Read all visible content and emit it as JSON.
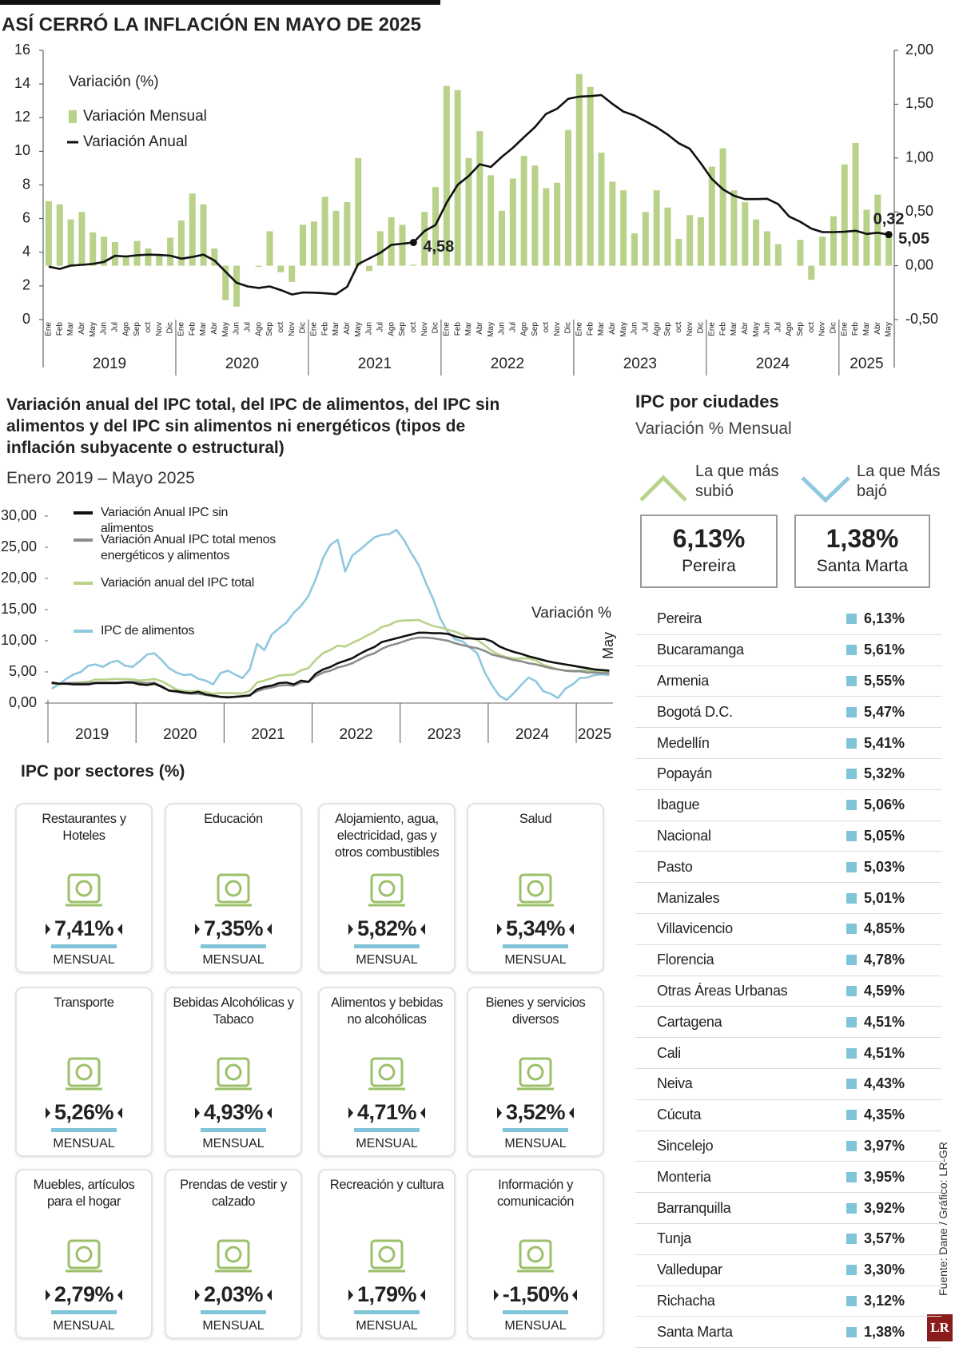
{
  "chart_data": [
    {
      "type": "combo",
      "title": "ASÍ CERRÓ LA INFLACIÓN EN MAYO DE 2025",
      "legend_title": "Variación (%)",
      "categories": [
        "Ene",
        "Feb",
        "Mar",
        "Abr",
        "May",
        "Jun",
        "Jul",
        "Ago",
        "Sep",
        "oct",
        "Nov",
        "Dic",
        "Ene",
        "Feb",
        "Mar",
        "Abr",
        "May",
        "Jun",
        "Jul",
        "Ago",
        "Sep",
        "oct",
        "Nov",
        "Dic",
        "Ene",
        "Feb",
        "Mar",
        "Abr",
        "May",
        "Jun",
        "Jul",
        "Ago",
        "Sep",
        "oct",
        "Nov",
        "Dic",
        "Ene",
        "Feb",
        "Mar",
        "Abr",
        "May",
        "Jun",
        "Jul",
        "Ago",
        "Sep",
        "oct",
        "Nov",
        "Dic",
        "Ene",
        "Feb",
        "Mar",
        "Abr",
        "May",
        "Jun",
        "Jul",
        "Ago",
        "Sep",
        "oct",
        "Nov",
        "Dic",
        "Ene",
        "Feb",
        "Mar",
        "Abr",
        "May",
        "Jun",
        "Jul",
        "Ago",
        "Sep",
        "oct",
        "Nov",
        "Dic",
        "Ene",
        "Feb",
        "Mar",
        "Abr",
        "May"
      ],
      "years": [
        "2019",
        "2020",
        "2021",
        "2022",
        "2023",
        "2024",
        "2025"
      ],
      "series": [
        {
          "name": "Variación Mensual",
          "type": "bar",
          "color": "#b8d28a",
          "axis": "y2",
          "values": [
            0.6,
            0.57,
            0.43,
            0.5,
            0.31,
            0.27,
            0.22,
            0.09,
            0.23,
            0.16,
            0.1,
            0.26,
            0.42,
            0.67,
            0.57,
            0.16,
            -0.32,
            -0.38,
            0.0,
            -0.01,
            0.32,
            -0.06,
            -0.15,
            0.38,
            0.41,
            0.64,
            0.51,
            0.59,
            1.0,
            -0.05,
            0.32,
            0.45,
            0.38,
            0.01,
            0.5,
            0.73,
            1.67,
            1.63,
            1.0,
            1.25,
            0.84,
            0.51,
            0.81,
            1.02,
            0.93,
            0.72,
            0.77,
            1.26,
            1.78,
            1.66,
            1.05,
            0.78,
            0.7,
            0.3,
            0.5,
            0.7,
            0.54,
            0.25,
            0.47,
            0.45,
            0.92,
            1.09,
            0.7,
            0.59,
            0.43,
            0.32,
            0.2,
            0.0,
            0.24,
            -0.13,
            0.27,
            0.46,
            0.94,
            1.14,
            0.52,
            0.66,
            0.32
          ],
          "value_labels": [
            null,
            null,
            null,
            null,
            null,
            null,
            null,
            null,
            null,
            null,
            null,
            null,
            null,
            null,
            null,
            null,
            null,
            null,
            null,
            null,
            null,
            null,
            null,
            null,
            null,
            null,
            null,
            null,
            null,
            null,
            null,
            null,
            null,
            null,
            null,
            null,
            null,
            null,
            null,
            null,
            null,
            null,
            null,
            null,
            null,
            null,
            null,
            null,
            null,
            null,
            null,
            null,
            null,
            null,
            null,
            null,
            null,
            null,
            null,
            null,
            null,
            null,
            null,
            null,
            null,
            null,
            null,
            null,
            null,
            null,
            null,
            null,
            null,
            null,
            null,
            null,
            "0,32"
          ]
        },
        {
          "name": "Variación Anual",
          "type": "line",
          "color": "#111111",
          "values": [
            3.15,
            3.01,
            3.21,
            3.25,
            3.31,
            3.43,
            3.79,
            3.75,
            3.82,
            3.86,
            3.84,
            3.8,
            3.62,
            3.72,
            3.86,
            3.51,
            2.85,
            2.19,
            1.97,
            1.88,
            1.97,
            1.75,
            1.49,
            1.61,
            1.6,
            1.56,
            1.51,
            1.95,
            3.3,
            3.63,
            3.97,
            4.44,
            4.51,
            4.58,
            5.26,
            5.62,
            6.94,
            8.01,
            8.53,
            9.23,
            9.07,
            9.67,
            10.21,
            10.84,
            11.44,
            12.22,
            12.53,
            13.12,
            13.25,
            13.28,
            13.34,
            12.82,
            12.36,
            12.13,
            11.78,
            11.43,
            10.99,
            10.48,
            10.15,
            9.28,
            8.35,
            7.74,
            7.36,
            7.16,
            7.16,
            7.18,
            6.86,
            6.12,
            5.81,
            5.41,
            5.2,
            5.2,
            5.22,
            5.28,
            5.09,
            5.16,
            5.05
          ],
          "value_labels": [
            null,
            null,
            null,
            null,
            null,
            null,
            null,
            null,
            null,
            null,
            null,
            null,
            null,
            null,
            null,
            null,
            null,
            null,
            null,
            null,
            null,
            null,
            null,
            null,
            null,
            null,
            null,
            null,
            null,
            null,
            null,
            null,
            null,
            "4,58",
            null,
            null,
            null,
            null,
            null,
            null,
            null,
            null,
            null,
            null,
            null,
            null,
            null,
            null,
            null,
            null,
            null,
            null,
            null,
            null,
            null,
            null,
            null,
            null,
            null,
            null,
            null,
            null,
            null,
            null,
            null,
            null,
            null,
            null,
            null,
            null,
            null,
            null,
            null,
            null,
            null,
            null,
            "5,05"
          ]
        }
      ],
      "ylim": [
        0,
        16
      ],
      "yticks": [
        0,
        2,
        4,
        6,
        8,
        10,
        12,
        14,
        16
      ],
      "y2lim": [
        -0.5,
        2.0
      ],
      "y2ticks": [
        {
          "value": -0.5,
          "label": "-0,50"
        },
        {
          "value": 0,
          "label": "0,00"
        },
        {
          "value": 0.5,
          "label": "0,50"
        },
        {
          "value": 1.0,
          "label": "1,00"
        },
        {
          "value": 1.5,
          "label": "1,50"
        },
        {
          "value": 2.0,
          "label": "2,00"
        }
      ]
    },
    {
      "type": "line",
      "title": "Variación anual del IPC total, del IPC de alimentos, del IPC sin alimentos y del IPC sin alimentos ni energéticos (tipos de inflación subyacente o estructural)",
      "subtitle": "Enero 2019 – Mayo 2025",
      "annotation": "Variación %",
      "categories": [
        null,
        null,
        null,
        null,
        null,
        null,
        null,
        null,
        null,
        null,
        null,
        null,
        null,
        null,
        null,
        null,
        null,
        null,
        null,
        null,
        null,
        null,
        null,
        null,
        null,
        null,
        null,
        null,
        null,
        null,
        null,
        null,
        null,
        null,
        null,
        null,
        null,
        null,
        null,
        null,
        null,
        null,
        null,
        null,
        null,
        null,
        null,
        null,
        null,
        null,
        null,
        null,
        null,
        null,
        null,
        null,
        null,
        null,
        null,
        null,
        null,
        null,
        null,
        null,
        null,
        null,
        null,
        null,
        null,
        null,
        null,
        null,
        null,
        null,
        null,
        null,
        "May"
      ],
      "years": [
        "2019",
        "2020",
        "2021",
        "2022",
        "2023",
        "2024",
        "2025"
      ],
      "series": [
        {
          "name": "Variación Anual IPC sin alimentos",
          "color": "#111111",
          "values": [
            3.3,
            3.1,
            3.1,
            3.0,
            3.0,
            3.0,
            3.2,
            3.2,
            3.2,
            3.2,
            3.3,
            3.3,
            3.0,
            2.9,
            3.1,
            2.6,
            2.0,
            1.9,
            1.7,
            1.6,
            1.8,
            1.4,
            1.2,
            1.0,
            0.9,
            1.0,
            1.1,
            1.2,
            2.2,
            2.6,
            2.8,
            3.2,
            3.3,
            3.0,
            3.6,
            3.4,
            4.7,
            5.4,
            5.8,
            6.4,
            6.8,
            7.2,
            7.9,
            8.5,
            9.0,
            9.8,
            10.1,
            10.4,
            10.7,
            11.0,
            11.3,
            11.3,
            11.2,
            11.2,
            11.1,
            10.7,
            10.4,
            10.4,
            10.3,
            10.3,
            9.9,
            9.1,
            8.6,
            8.2,
            7.9,
            7.5,
            7.2,
            6.9,
            6.6,
            6.4,
            6.2,
            6.0,
            5.8,
            5.6,
            5.4,
            5.3,
            5.2
          ]
        },
        {
          "name": "Variación Anual IPC total menos energéticos y alimentos",
          "color": "#8c8c8c",
          "values": [
            3.2,
            3.1,
            3.2,
            3.2,
            3.2,
            3.2,
            3.3,
            3.3,
            3.3,
            3.3,
            3.4,
            3.4,
            3.3,
            3.2,
            3.3,
            2.7,
            2.0,
            1.8,
            1.6,
            1.5,
            1.5,
            1.3,
            1.1,
            1.0,
            1.0,
            1.0,
            1.1,
            1.3,
            1.9,
            2.3,
            2.5,
            2.8,
            2.9,
            2.8,
            3.3,
            3.4,
            4.3,
            4.9,
            5.2,
            5.7,
            6.0,
            6.4,
            7.0,
            7.6,
            8.0,
            8.7,
            9.2,
            9.5,
            9.9,
            10.3,
            10.5,
            10.5,
            10.4,
            10.2,
            10.0,
            9.6,
            9.3,
            9.0,
            8.8,
            8.4,
            7.8,
            7.5,
            7.2,
            6.9,
            6.7,
            6.4,
            6.2,
            5.9,
            5.6,
            5.4,
            5.2,
            5.1,
            5.1,
            4.9,
            4.9,
            4.8,
            4.8
          ]
        },
        {
          "name": "Variación anual del IPC total",
          "color": "#b8d28a",
          "values": [
            3.15,
            3.01,
            3.21,
            3.25,
            3.31,
            3.43,
            3.79,
            3.75,
            3.82,
            3.86,
            3.84,
            3.8,
            3.62,
            3.72,
            3.86,
            3.51,
            2.85,
            2.19,
            1.97,
            1.88,
            1.97,
            1.75,
            1.49,
            1.61,
            1.6,
            1.56,
            1.51,
            1.95,
            3.3,
            3.63,
            3.97,
            4.44,
            4.51,
            4.58,
            5.26,
            5.62,
            6.94,
            8.01,
            8.53,
            9.23,
            9.07,
            9.67,
            10.21,
            10.84,
            11.44,
            12.22,
            12.53,
            13.12,
            13.25,
            13.28,
            13.34,
            12.82,
            12.36,
            12.13,
            11.78,
            11.43,
            10.99,
            10.48,
            10.15,
            9.28,
            8.35,
            7.74,
            7.36,
            7.16,
            7.16,
            7.18,
            6.86,
            6.12,
            5.81,
            5.41,
            5.2,
            5.2,
            5.22,
            5.28,
            5.09,
            5.16,
            5.05
          ]
        },
        {
          "name": "IPC de alimentos",
          "color": "#8fc8df",
          "values": [
            2.3,
            3.0,
            3.9,
            4.6,
            5.0,
            6.0,
            6.2,
            5.8,
            6.5,
            6.8,
            6.0,
            5.8,
            6.7,
            7.8,
            8.0,
            6.9,
            5.6,
            4.9,
            4.5,
            4.6,
            3.9,
            3.6,
            3.0,
            4.8,
            5.2,
            4.6,
            4.0,
            5.4,
            9.5,
            8.5,
            11.0,
            12.0,
            12.9,
            14.5,
            15.6,
            17.2,
            19.9,
            23.3,
            25.4,
            26.2,
            21.1,
            23.7,
            24.6,
            25.6,
            26.6,
            27.0,
            27.1,
            27.8,
            26.2,
            24.1,
            22.2,
            19.3,
            16.7,
            13.5,
            11.4,
            10.2,
            9.9,
            8.9,
            8.0,
            5.0,
            2.9,
            1.2,
            0.5,
            1.6,
            2.9,
            4.1,
            3.5,
            1.9,
            1.5,
            0.8,
            2.3,
            3.0,
            4.0,
            4.1,
            4.5,
            4.6,
            4.5
          ]
        }
      ],
      "ylim": [
        0,
        30
      ],
      "yticks": [
        {
          "value": 0,
          "label": "0,00"
        },
        {
          "value": 5,
          "label": "5,00"
        },
        {
          "value": 10,
          "label": "10,00"
        },
        {
          "value": 15,
          "label": "15,00"
        },
        {
          "value": 20,
          "label": "20,00"
        },
        {
          "value": 25,
          "label": "25,00"
        },
        {
          "value": 30,
          "label": "30,00"
        }
      ]
    }
  ],
  "sectors": {
    "title": "IPC por sectores (%)",
    "items": [
      {
        "name": "Restaurantes y Hoteles",
        "value": "7,41%",
        "period": "MENSUAL"
      },
      {
        "name": "Educación",
        "value": "7,35%",
        "period": "MENSUAL"
      },
      {
        "name": "Alojamiento, agua, electricidad, gas y otros combustibles",
        "value": "5,82%",
        "period": "MENSUAL"
      },
      {
        "name": "Salud",
        "value": "5,34%",
        "period": "MENSUAL"
      },
      {
        "name": "Transporte",
        "value": "5,26%",
        "period": "MENSUAL"
      },
      {
        "name": "Bebidas Alcohólicas y Tabaco",
        "value": "4,93%",
        "period": "MENSUAL"
      },
      {
        "name": "Alimentos y bebidas no alcohólicas",
        "value": "4,71%",
        "period": "MENSUAL"
      },
      {
        "name": "Bienes y servicios diversos",
        "value": "3,52%",
        "period": "MENSUAL"
      },
      {
        "name": "Muebles, artículos para el hogar",
        "value": "2,79%",
        "period": "MENSUAL"
      },
      {
        "name": "Prendas de vestir y calzado",
        "value": "2,03%",
        "period": "MENSUAL"
      },
      {
        "name": "Recreación y cultura",
        "value": "1,79%",
        "period": "MENSUAL"
      },
      {
        "name": "Información y comunicación",
        "value": "-1,50%",
        "period": "MENSUAL"
      }
    ]
  },
  "cities": {
    "title": "IPC por ciudades",
    "subtitle": "Variación % Mensual",
    "highest": {
      "label": "La que más subió",
      "value": "6,13%",
      "city": "Pereira"
    },
    "lowest": {
      "label": "La que Más bajó",
      "value": "1,38%",
      "city": "Santa Marta"
    },
    "rows": [
      {
        "name": "Pereira",
        "value": "6,13%"
      },
      {
        "name": "Bucaramanga",
        "value": "5,61%"
      },
      {
        "name": "Armenia",
        "value": "5,55%"
      },
      {
        "name": "Bogotá D.C.",
        "value": "5,47%"
      },
      {
        "name": "Medellín",
        "value": "5,41%"
      },
      {
        "name": "Popayán",
        "value": "5,32%"
      },
      {
        "name": "Ibague",
        "value": "5,06%"
      },
      {
        "name": "Nacional",
        "value": "5,05%"
      },
      {
        "name": "Pasto",
        "value": "5,03%"
      },
      {
        "name": "Manizales",
        "value": "5,01%"
      },
      {
        "name": "Villavicencio",
        "value": "4,85%"
      },
      {
        "name": "Florencia",
        "value": "4,78%"
      },
      {
        "name": "Otras Áreas Urbanas",
        "value": "4,59%"
      },
      {
        "name": "Cartagena",
        "value": "4,51%"
      },
      {
        "name": "Cali",
        "value": "4,51%"
      },
      {
        "name": "Neiva",
        "value": "4,43%"
      },
      {
        "name": "Cúcuta",
        "value": "4,35%"
      },
      {
        "name": "Sincelejo",
        "value": "3,97%"
      },
      {
        "name": "Monteria",
        "value": "3,95%"
      },
      {
        "name": "Barranquilla",
        "value": "3,92%"
      },
      {
        "name": "Tunja",
        "value": "3,57%"
      },
      {
        "name": "Valledupar",
        "value": "3,30%"
      },
      {
        "name": "Richacha",
        "value": "3,12%"
      },
      {
        "name": "Santa Marta",
        "value": "1,38%"
      }
    ]
  },
  "source": "Fuente: Dane / Gráfico: LR-GR",
  "logo": "LR"
}
